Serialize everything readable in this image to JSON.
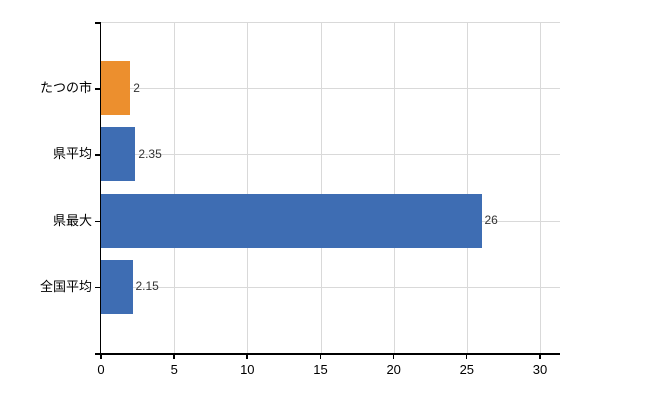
{
  "chart_data": {
    "type": "bar",
    "orientation": "horizontal",
    "title": "",
    "xlabel": "",
    "ylabel": "",
    "categories": [
      "たつの市",
      "県平均",
      "県最大",
      "全国平均"
    ],
    "values": [
      2,
      2.35,
      26,
      2.15
    ],
    "value_labels": [
      "2",
      "2.35",
      "26",
      "2.15"
    ],
    "bar_colors": [
      "#EC8F2E",
      "#3E6DB3",
      "#3E6DB3",
      "#3E6DB3"
    ],
    "x_tick_values": [
      0,
      5,
      10,
      15,
      20,
      25,
      30
    ],
    "x_tick_labels": [
      "0",
      "5",
      "10",
      "15",
      "20",
      "25",
      "30"
    ],
    "xlim": [
      0,
      31.4
    ],
    "grid": "both",
    "legend": "none"
  },
  "colors": {
    "background": "#FFFFFF",
    "axis": "#000000",
    "grid": "#D9D9D9",
    "category_text": "#000000",
    "value_text": "#333333",
    "bar_blue": "#3E6DB3",
    "bar_orange": "#EC8F2E"
  }
}
